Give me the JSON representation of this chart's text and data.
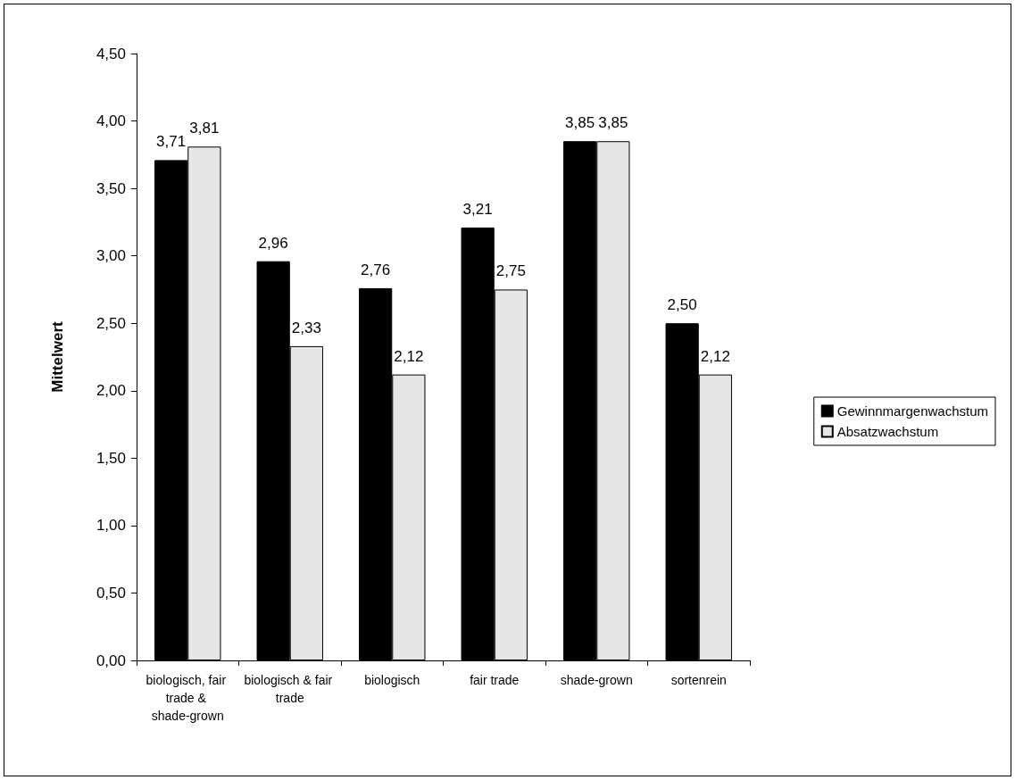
{
  "chart_data": {
    "type": "bar",
    "ylabel": "Mittelwert",
    "categories": [
      "biologisch, fair trade & shade-grown",
      "biologisch & fair trade",
      "biologisch",
      "fair trade",
      "shade-grown",
      "sortenrein"
    ],
    "series": [
      {
        "name": "Gewinnmargenwachstum",
        "color": "#000000",
        "values": [
          3.71,
          2.96,
          2.76,
          3.21,
          3.85,
          2.5
        ],
        "value_labels": [
          "3,71",
          "2,96",
          "2,76",
          "3,21",
          "3,85",
          "2,50"
        ]
      },
      {
        "name": "Absatzwachstum",
        "color": "#e6e6e6",
        "values": [
          3.81,
          2.33,
          2.12,
          2.75,
          3.85,
          2.12
        ],
        "value_labels": [
          "3,81",
          "2,33",
          "2,12",
          "2,75",
          "3,85",
          "2,12"
        ]
      }
    ],
    "ylim": [
      0,
      4.5
    ],
    "yticks": [
      {
        "value": 0,
        "label": "0,00"
      },
      {
        "value": 0.5,
        "label": "0,50"
      },
      {
        "value": 1,
        "label": "1,00"
      },
      {
        "value": 1.5,
        "label": "1,50"
      },
      {
        "value": 2,
        "label": "2,00"
      },
      {
        "value": 2.5,
        "label": "2,50"
      },
      {
        "value": 3,
        "label": "3,00"
      },
      {
        "value": 3.5,
        "label": "3,50"
      },
      {
        "value": 4,
        "label": "4,00"
      },
      {
        "value": 4.5,
        "label": "4,50"
      }
    ],
    "grid": false,
    "legend": "right"
  }
}
